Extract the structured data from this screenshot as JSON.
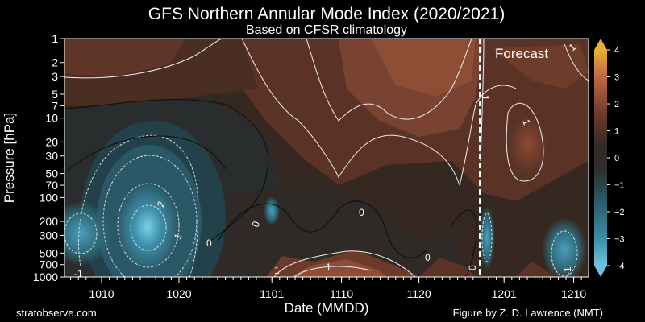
{
  "chart_data": {
    "type": "heatmap",
    "title": "GFS Northern Annular Mode Index (2020/2021)",
    "subtitle": "Based on CFSR climatology",
    "xlabel": "Date (MMDD)",
    "ylabel": "Pressure [hPa]",
    "x_tick_labels": [
      "1010",
      "1020",
      "1101",
      "1110",
      "1120",
      "1201",
      "1210"
    ],
    "y_tick_labels": [
      "1",
      "2",
      "3",
      "5",
      "7",
      "10",
      "20",
      "30",
      "50",
      "70",
      "100",
      "200",
      "300",
      "500",
      "700",
      "1000"
    ],
    "y_scale": "log",
    "ylim": [
      1000,
      1
    ],
    "colorbar_ticks": [
      "4",
      "3",
      "2",
      "1",
      "0",
      "−1",
      "−2",
      "−3",
      "−4"
    ],
    "colorbar_range": [
      -4,
      4
    ],
    "annotation": "Forecast",
    "forecast_start": "1202",
    "contour_labels": [
      "-2",
      "-1",
      "0",
      "0",
      "0",
      "0",
      "1",
      "1",
      "1",
      "-1",
      "0",
      "-1",
      "1",
      "1"
    ],
    "colors": {
      "negative": "#3d90ab",
      "neutral": "#2a2a2a",
      "positive": "#c26a45",
      "extreme_high": "#e8b030",
      "extreme_low": "#6ec2de"
    }
  },
  "footer": {
    "left": "stratobserve.com",
    "right": "Figure by Z. D. Lawrence (NMT)"
  }
}
